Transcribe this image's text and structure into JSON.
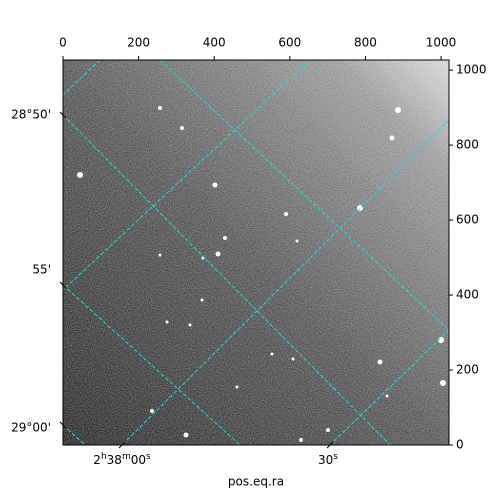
{
  "chart_data": {
    "type": "image",
    "xlabel": "pos.eq.ra",
    "xlim": [
      0,
      1021
    ],
    "xticks": [
      0,
      200,
      400,
      600,
      800,
      1000
    ],
    "ylim": [
      0,
      1027
    ],
    "yticks": [
      0,
      200,
      400,
      600,
      800,
      1000
    ],
    "dec_ticks": [
      "28°50'",
      "55'",
      "29°00'"
    ],
    "ra_ticks": [
      [
        "2",
        "h",
        "38",
        "m",
        "00",
        "s"
      ],
      [
        "30",
        "s"
      ]
    ],
    "grid_color": "#2ad4d4"
  }
}
